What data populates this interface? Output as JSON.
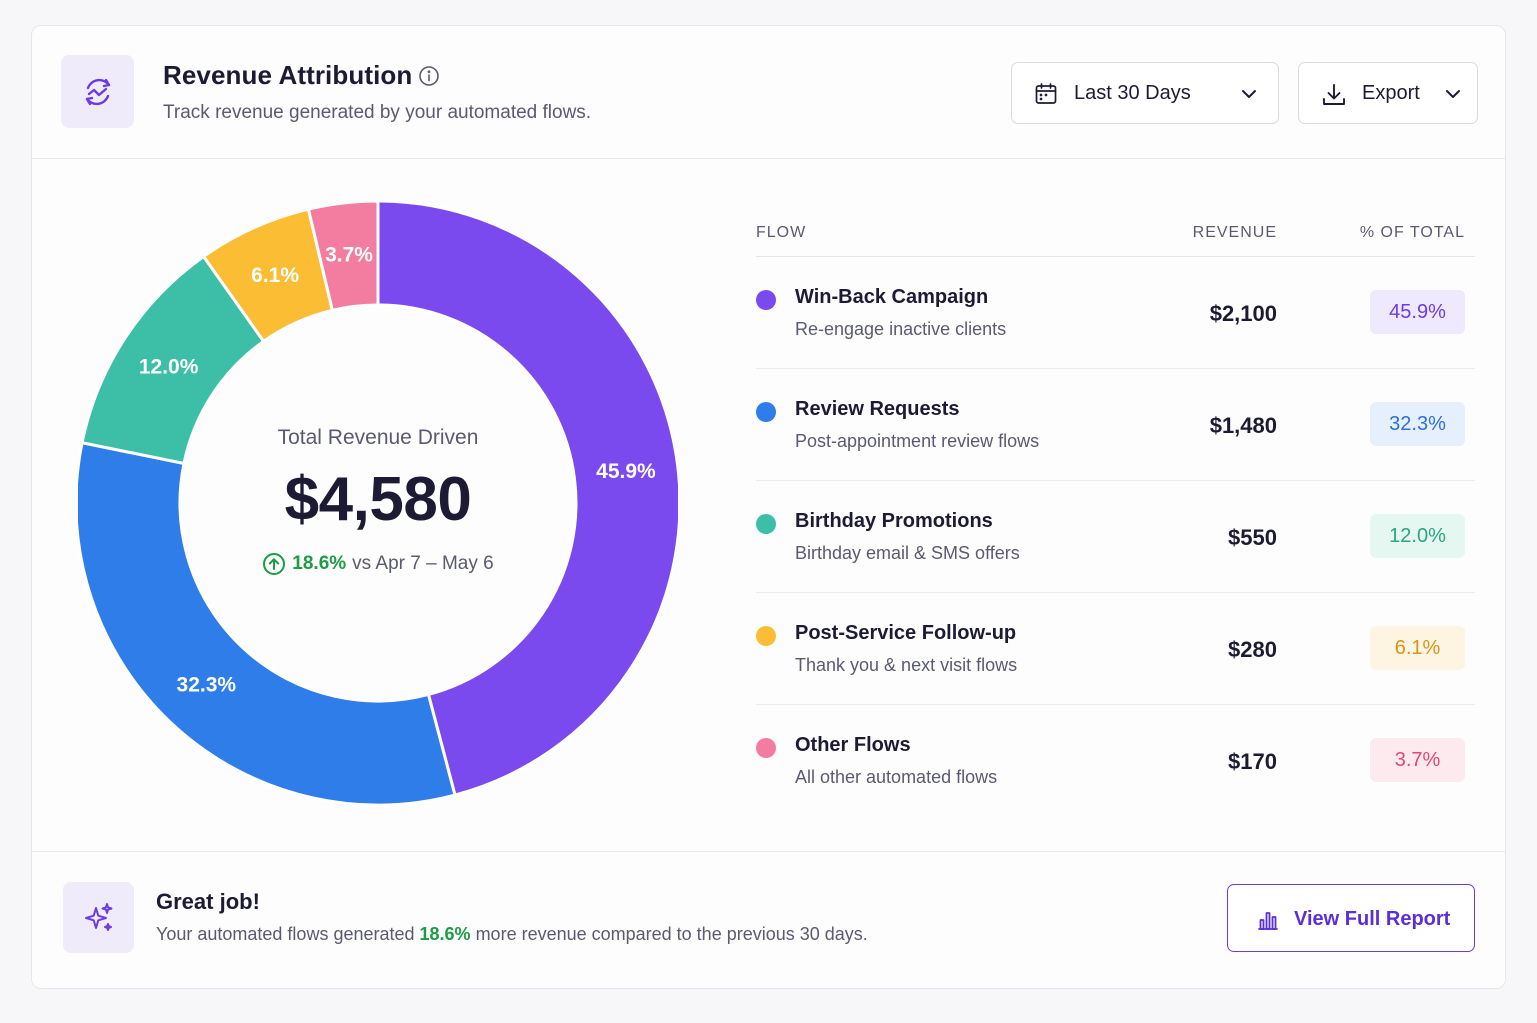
{
  "header": {
    "title": "Revenue Attribution",
    "subtitle": "Track revenue generated by your automated flows.",
    "date_label": "Last 30 Days",
    "export_label": "Export"
  },
  "summary": {
    "center_title": "Total Revenue Driven",
    "total": "$4,580",
    "delta": "18.6%",
    "delta_text": "vs Apr 7 – May 6"
  },
  "table": {
    "col_flow": "FLOW",
    "col_revenue": "REVENUE",
    "col_pct": "% OF TOTAL",
    "rows": [
      {
        "name": "Win-Back Campaign",
        "sub": "Re-engage inactive clients",
        "revenue": "$2,100",
        "pct": "45.9%"
      },
      {
        "name": "Review Requests",
        "sub": "Post-appointment review flows",
        "revenue": "$1,480",
        "pct": "32.3%"
      },
      {
        "name": "Birthday Promotions",
        "sub": "Birthday email & SMS offers",
        "revenue": "$550",
        "pct": "12.0%"
      },
      {
        "name": "Post-Service Follow-up",
        "sub": "Thank you & next visit flows",
        "revenue": "$280",
        "pct": "6.1%"
      },
      {
        "name": "Other Flows",
        "sub": "All other automated flows",
        "revenue": "$170",
        "pct": "3.7%"
      }
    ]
  },
  "colors": {
    "purple": "#7b4aef",
    "blue": "#2f7de8",
    "teal": "#3cbfa6",
    "yellow": "#fbbd34",
    "pink": "#f37da0",
    "accent": "#6c3be6",
    "positive": "#1b9c45"
  },
  "chart_data": {
    "type": "pie",
    "categories": [
      "Win-Back Campaign",
      "Review Requests",
      "Birthday Promotions",
      "Post-Service Follow-up",
      "Other Flows"
    ],
    "values": [
      45.9,
      32.3,
      12.0,
      6.1,
      3.7
    ],
    "labels": [
      "45.9%",
      "32.3%",
      "12.0%",
      "6.1%",
      "3.7%"
    ],
    "colors": [
      "#7b4aef",
      "#2f7de8",
      "#3cbfa6",
      "#fbbd34",
      "#f37da0"
    ]
  },
  "footer": {
    "title": "Great job!",
    "text_before": "Your automated flows generated ",
    "highlight": "18.6%",
    "text_after": " more revenue compared to the previous 30 days.",
    "button_label": "View Full Report"
  },
  "icons": {
    "logo": "revenue-trend-icon",
    "info": "info-icon",
    "calendar": "calendar-icon",
    "download": "download-icon",
    "chevron": "chevron-down-icon",
    "arrow_up": "arrow-up-circle-icon",
    "sparkles": "sparkles-icon",
    "chart": "bar-chart-icon"
  }
}
